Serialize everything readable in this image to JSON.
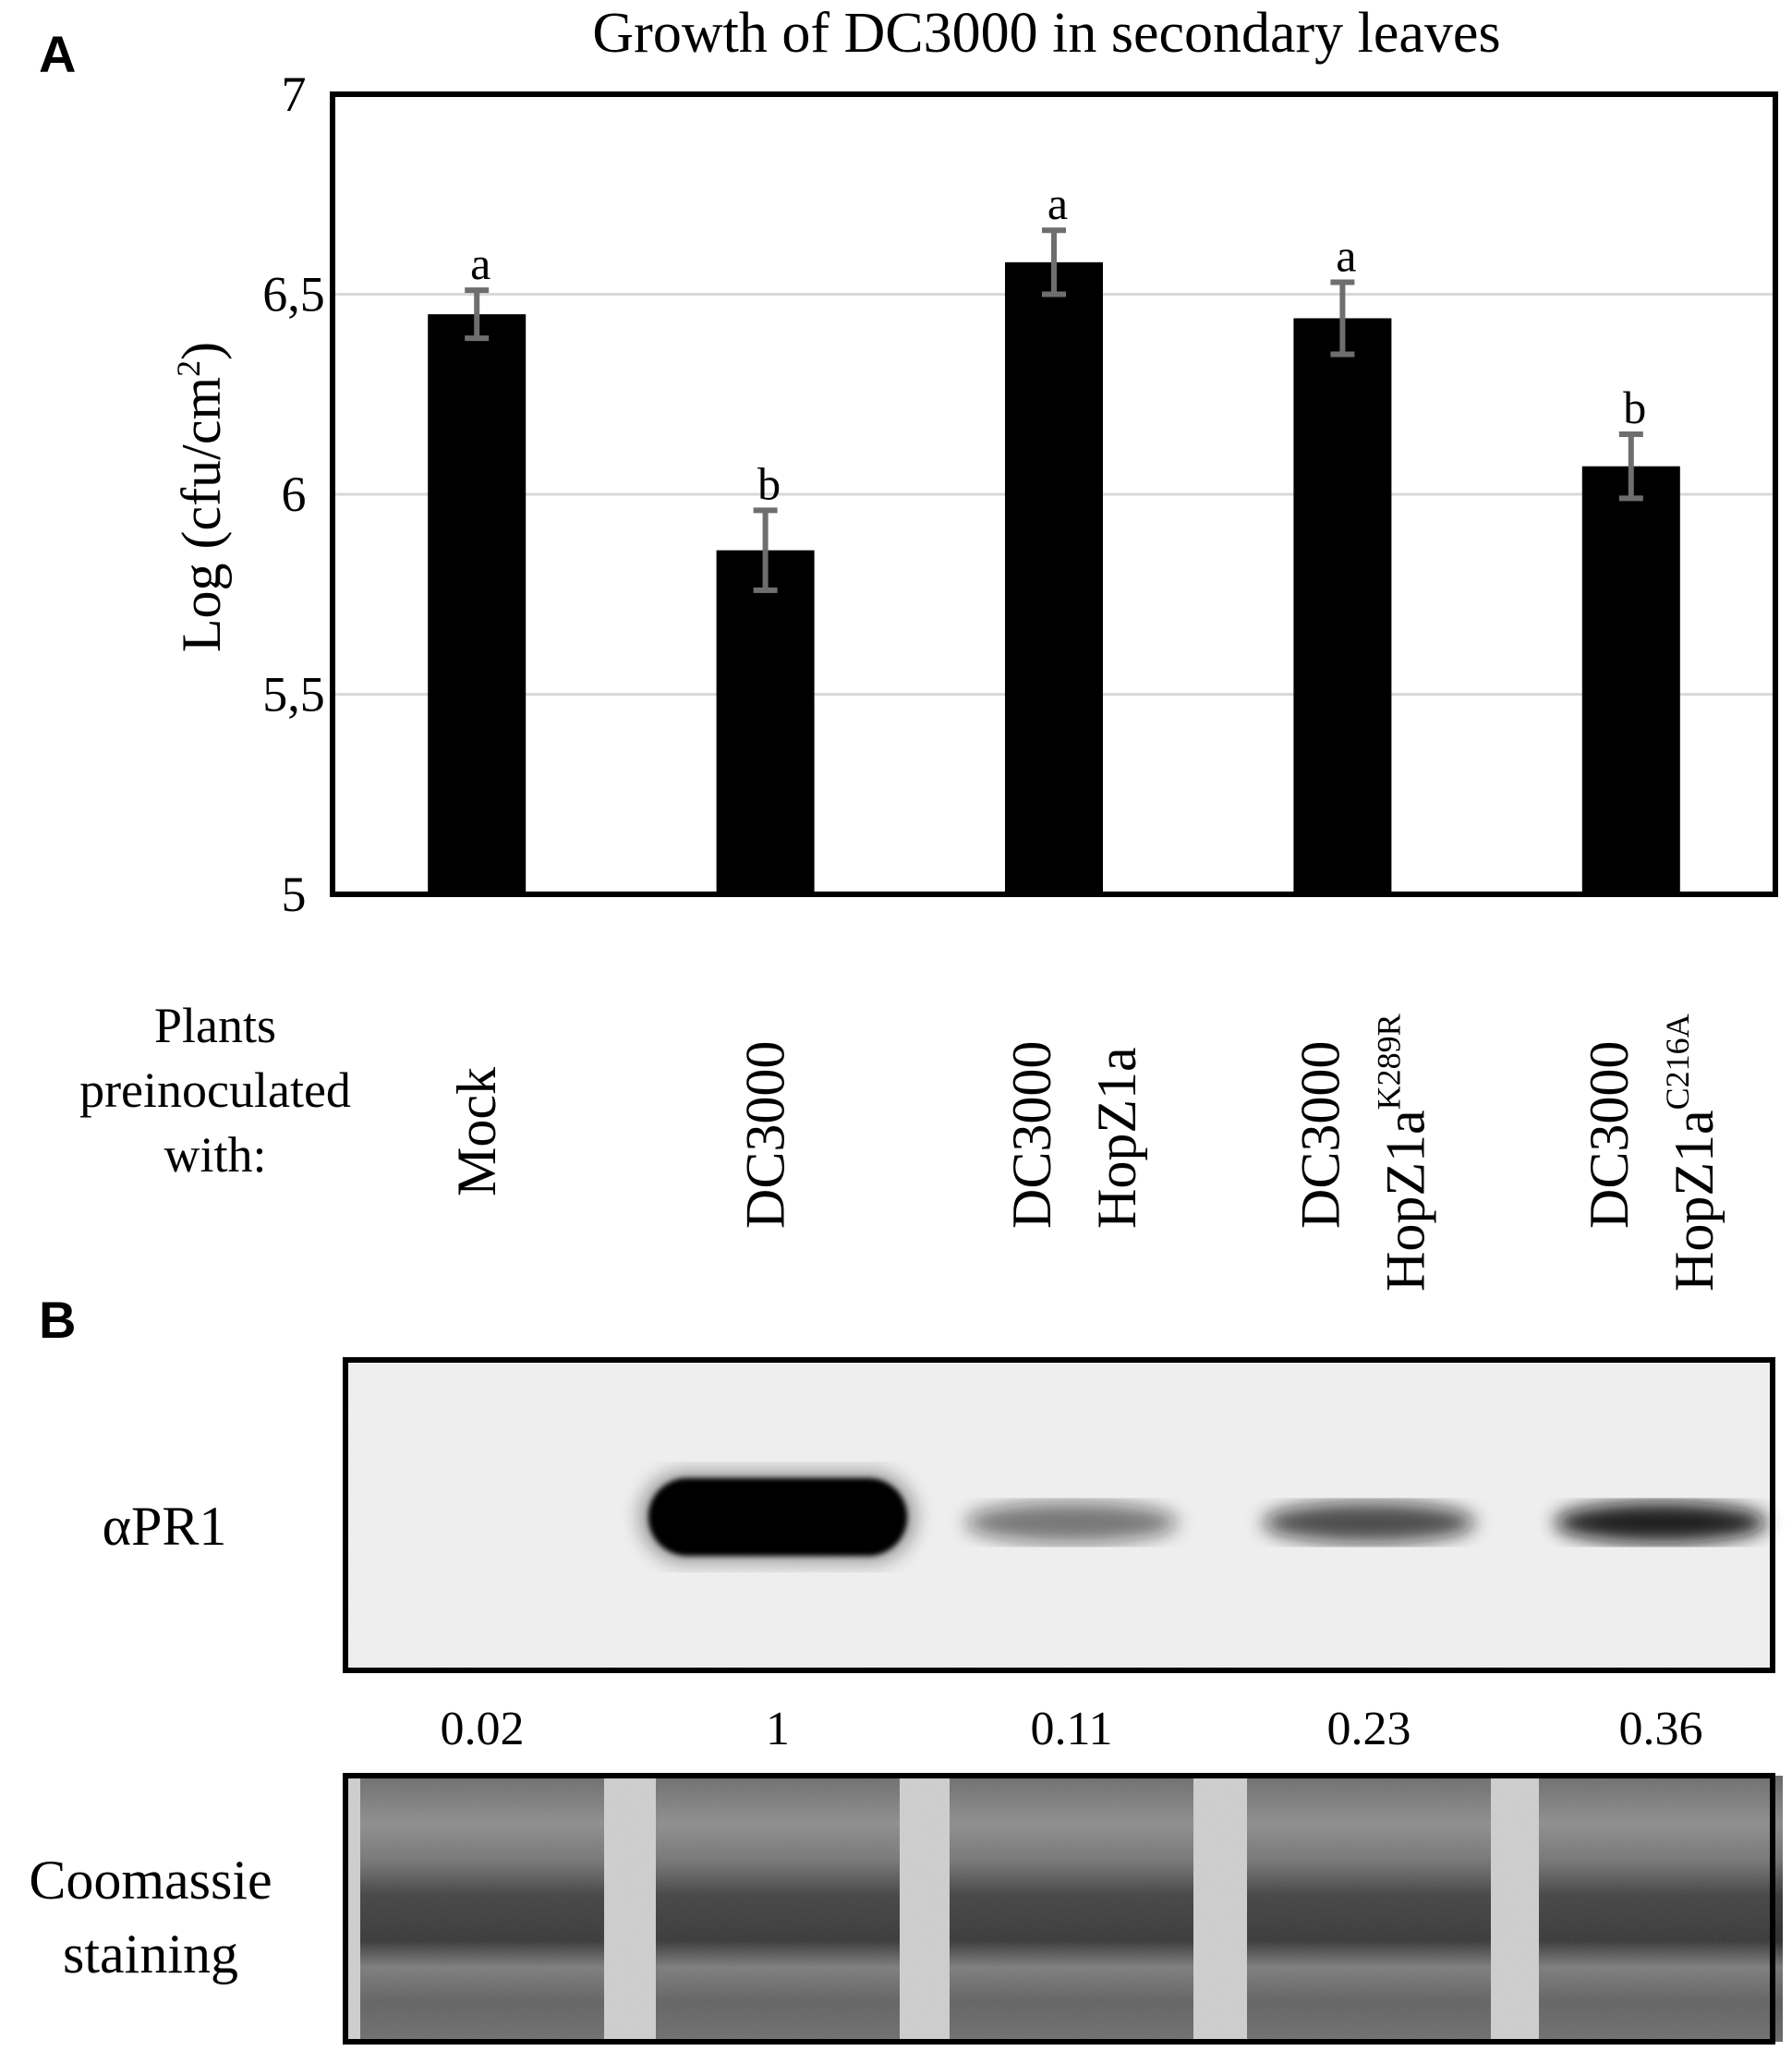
{
  "panels": {
    "a": "A",
    "b": "B"
  },
  "chart_data": {
    "type": "bar",
    "title": "Growth of DC3000 in secondary leaves",
    "ylabel_main": "Log (cfu/cm",
    "ylabel_sup": "2",
    "ylabel_end": ")",
    "xlabel_lines": [
      "Plants",
      "preinoculated",
      "with:"
    ],
    "ylim": [
      5,
      7
    ],
    "yticks": [
      5,
      5.5,
      6,
      6.5,
      7
    ],
    "ytick_labels": [
      "5",
      "5,5",
      "6",
      "6,5",
      "7"
    ],
    "grid": true,
    "categories": [
      {
        "line1": "Mock",
        "line2": "",
        "sup": ""
      },
      {
        "line1": "DC3000",
        "line2": "",
        "sup": ""
      },
      {
        "line1": "DC3000",
        "line2": "HopZ1a",
        "sup": ""
      },
      {
        "line1": "DC3000",
        "line2": "HopZ1a",
        "sup": "K289R"
      },
      {
        "line1": "DC3000",
        "line2": "HopZ1a",
        "sup": "C216A"
      }
    ],
    "values": [
      6.45,
      5.86,
      6.58,
      6.44,
      6.07
    ],
    "errors": [
      0.06,
      0.1,
      0.08,
      0.09,
      0.08
    ],
    "significance": [
      "a",
      "b",
      "a",
      "a",
      "b"
    ],
    "colors": {
      "bar": "#000000",
      "error": "#6e6e6e",
      "grid": "#d9d9d9"
    }
  },
  "blot": {
    "antibody_label": "αPR1",
    "loading_label_lines": [
      "Coomassie",
      "staining"
    ],
    "quantification": [
      "0.02",
      "1",
      "0.11",
      "0.23",
      "0.36"
    ],
    "band_intensity": [
      0.02,
      1,
      0.11,
      0.23,
      0.36
    ]
  }
}
